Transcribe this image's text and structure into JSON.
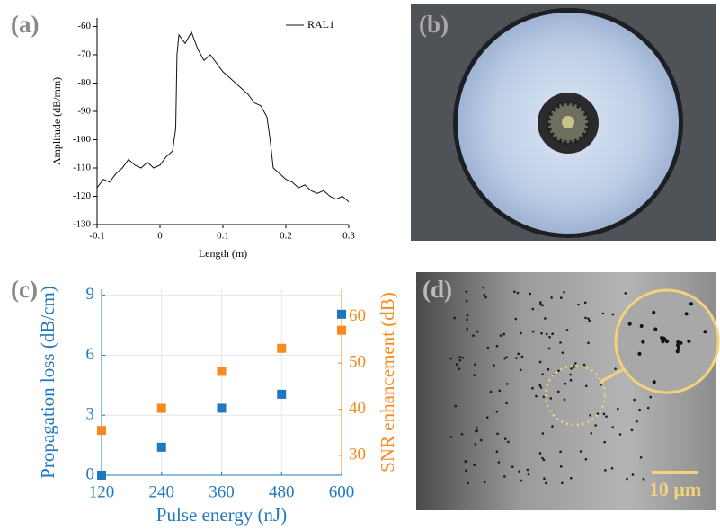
{
  "panel_labels": [
    "(a)",
    "(b)",
    "(c)",
    "(d)"
  ],
  "scale_bar": "10 μm",
  "chart_data": [
    {
      "type": "line",
      "xlabel": "Length (m)",
      "ylabel": "Amplitude (dB/mm)",
      "x": [
        -0.1,
        -0.09,
        -0.08,
        -0.07,
        -0.06,
        -0.05,
        -0.04,
        -0.03,
        -0.02,
        -0.01,
        0,
        0.01,
        0.02,
        0.025,
        0.027,
        0.03,
        0.04,
        0.05,
        0.06,
        0.07,
        0.08,
        0.09,
        0.1,
        0.11,
        0.12,
        0.13,
        0.14,
        0.15,
        0.16,
        0.17,
        0.175,
        0.18,
        0.19,
        0.2,
        0.21,
        0.22,
        0.23,
        0.24,
        0.25,
        0.26,
        0.27,
        0.28,
        0.29,
        0.3
      ],
      "series": [
        {
          "name": "RAL1",
          "color": "#111111",
          "values": [
            -117,
            -114,
            -115,
            -112,
            -110,
            -107,
            -109,
            -110,
            -108,
            -110,
            -109,
            -106,
            -104,
            -96,
            -70,
            -63,
            -66,
            -62,
            -68,
            -72,
            -70,
            -73,
            -76,
            -78,
            -80,
            -82,
            -84,
            -87,
            -88,
            -92,
            -100,
            -110,
            -112,
            -114,
            -115,
            -117,
            -116,
            -118,
            -119,
            -118,
            -120,
            -121,
            -120,
            -122
          ]
        }
      ],
      "xlim": [
        -0.1,
        0.3
      ],
      "xticks": [
        -0.1,
        0,
        0.1,
        0.2,
        0.3
      ],
      "ylim": [
        -130,
        -57
      ],
      "yticks": [
        -130,
        -120,
        -110,
        -100,
        -90,
        -80,
        -70,
        -60
      ],
      "legend": "upper right",
      "grid": false
    },
    {
      "type": "scatter",
      "xlabel": "Pulse energy (nJ)",
      "ylabel": "Propagation loss (dB/cm)",
      "y2label": "SNR enhancement (dB)",
      "x": [
        120,
        240,
        360,
        480,
        600
      ],
      "series": [
        {
          "color": "#1f77c0",
          "values": [
            0,
            1.4,
            3.35,
            4.05,
            8.05
          ]
        },
        {
          "color": "#f58a1f",
          "axis": "y2",
          "values": [
            35.4,
            40.2,
            48.2,
            53.2,
            57.1
          ]
        }
      ],
      "xlim": [
        120,
        600
      ],
      "xticks": [
        120,
        240,
        360,
        480,
        600
      ],
      "ylim": [
        0,
        9.3
      ],
      "yticks": [
        0,
        3,
        6,
        9
      ],
      "y2lim": [
        25.7,
        66
      ],
      "y2ticks": [
        30,
        40,
        50,
        60
      ],
      "grid": true
    }
  ]
}
